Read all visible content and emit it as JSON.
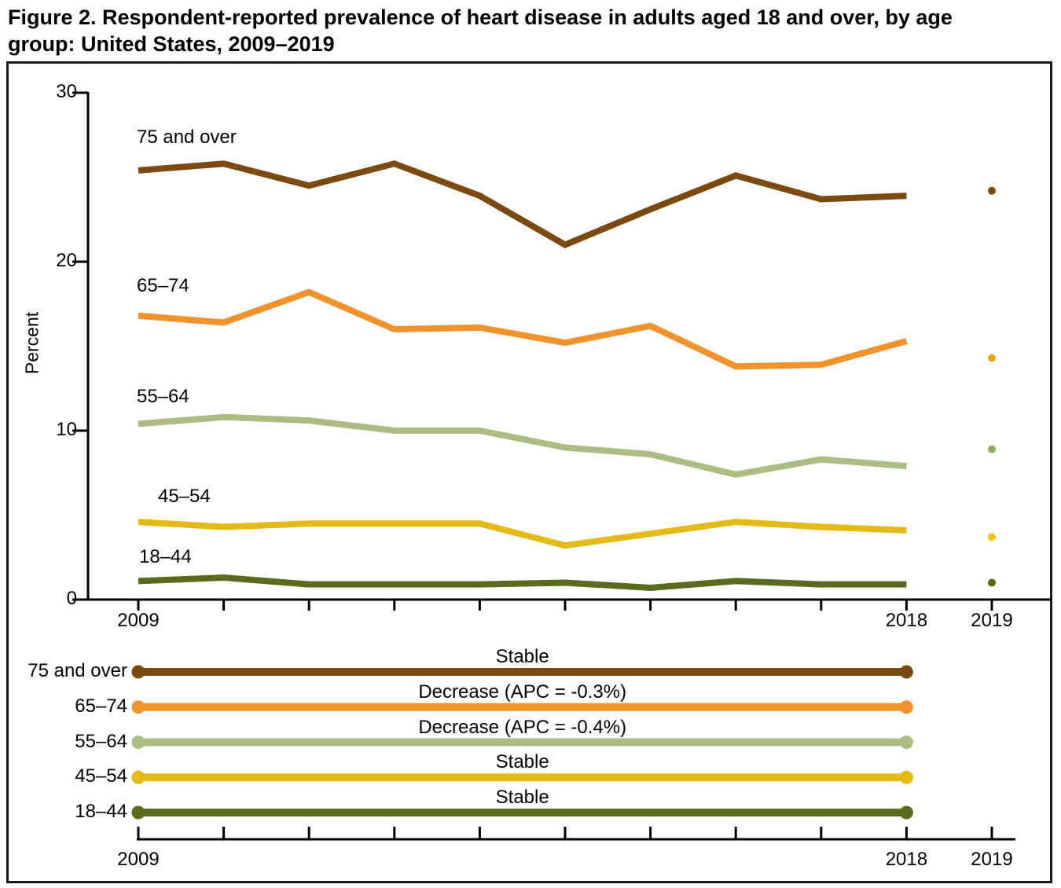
{
  "title": {
    "line1": "Figure 2. Respondent-reported prevalence of heart disease in adults aged 18 and over, by age",
    "line2": "group: United States, 2009–2019"
  },
  "y_axis": {
    "label": "Percent",
    "tick_labels": [
      "0",
      "10",
      "20",
      "30"
    ],
    "tick_values": [
      0,
      10,
      20,
      30
    ],
    "ylim": [
      0,
      30
    ]
  },
  "x_axis": {
    "tick_years": [
      2009,
      2010,
      2011,
      2012,
      2013,
      2014,
      2015,
      2016,
      2017,
      2018,
      2019
    ],
    "labels": [
      {
        "year": 2009,
        "text": "2009"
      },
      {
        "year": 2018,
        "text": "2018"
      },
      {
        "year": 2019,
        "text": "2019"
      }
    ]
  },
  "chart_data": {
    "type": "line",
    "title": "Respondent-reported prevalence of heart disease in adults aged 18 and over, by age group: United States, 2009–2019",
    "xlabel": "",
    "ylabel": "Percent",
    "ylim": [
      0,
      30
    ],
    "grid": false,
    "x": [
      2009,
      2010,
      2011,
      2012,
      2013,
      2014,
      2015,
      2016,
      2017,
      2018
    ],
    "x_2019_point": 2019,
    "series": [
      {
        "label": "75 and over",
        "color": "#7A4A10",
        "dot_color": "#7A4A10",
        "values": [
          25.4,
          25.8,
          24.5,
          25.8,
          23.9,
          21.0,
          23.1,
          25.1,
          23.7,
          23.9
        ],
        "value_2019": 24.2,
        "trend": "Stable"
      },
      {
        "label": "65–74",
        "color": "#F0932C",
        "dot_color": "#DFAC17",
        "values": [
          16.8,
          16.4,
          18.2,
          16.0,
          16.1,
          15.2,
          16.2,
          13.8,
          13.9,
          15.3
        ],
        "value_2019": 14.3,
        "trend": "Decrease (APC = -0.3%)"
      },
      {
        "label": "55–64",
        "color": "#ACBC82",
        "dot_color": "#93A960",
        "values": [
          10.4,
          10.8,
          10.6,
          10.0,
          10.0,
          9.0,
          8.6,
          7.4,
          8.3,
          7.9
        ],
        "value_2019": 8.9,
        "trend": "Decrease (APC = -0.4%)"
      },
      {
        "label": "45–54",
        "color": "#E3BA16",
        "dot_color": "#EDC40C",
        "values": [
          4.6,
          4.3,
          4.5,
          4.5,
          4.5,
          3.2,
          3.9,
          4.6,
          4.3,
          4.1
        ],
        "value_2019": 3.7,
        "trend": "Stable"
      },
      {
        "label": "18–44",
        "color": "#5A6A1E",
        "dot_color": "#566918",
        "values": [
          1.1,
          1.3,
          0.9,
          0.9,
          0.9,
          1.0,
          0.7,
          1.1,
          0.9,
          0.9
        ],
        "value_2019": 1.0,
        "trend": "Stable"
      }
    ]
  }
}
